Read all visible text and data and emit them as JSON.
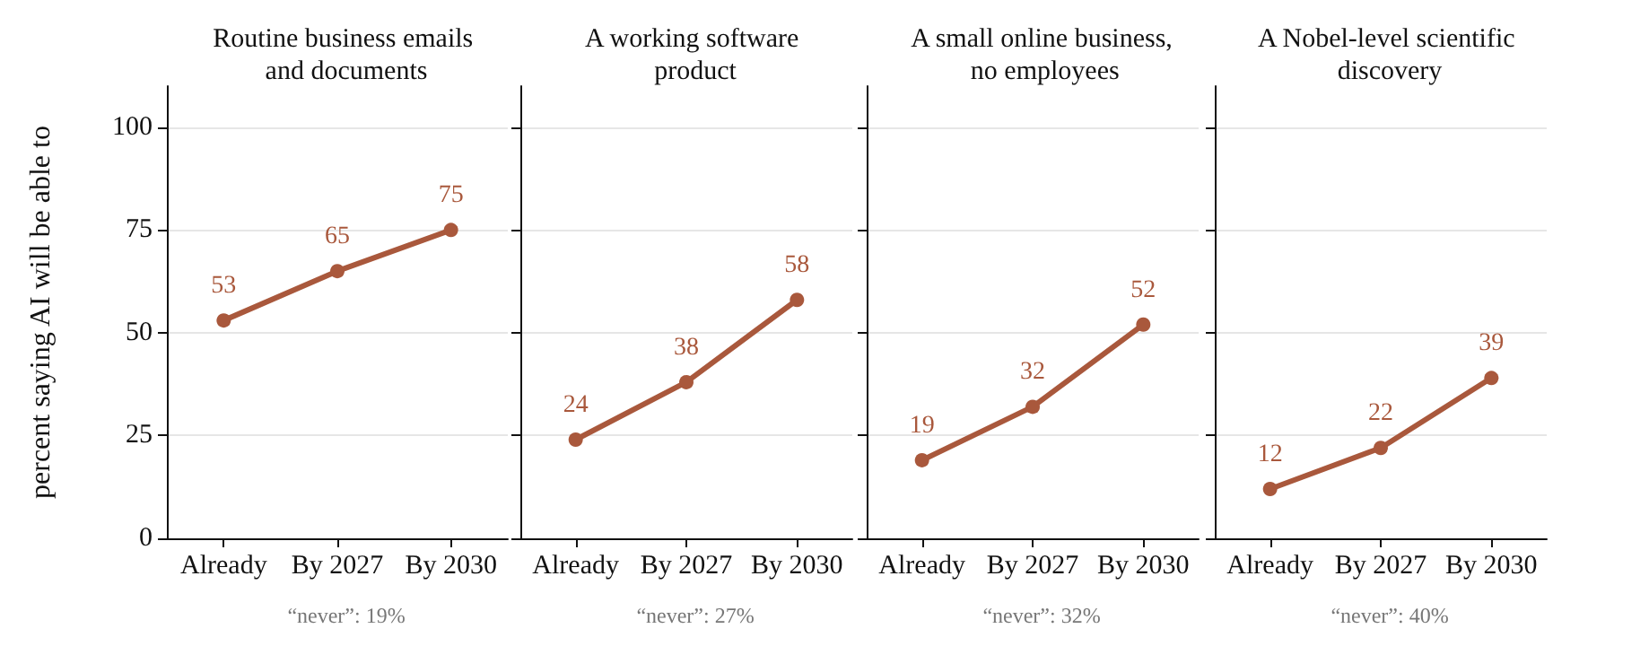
{
  "chart_data": [
    {
      "type": "line",
      "title": "Routine business emails and documents",
      "ylabel": "percent saying AI will be able to",
      "categories": [
        "Already",
        "By 2027",
        "By 2030"
      ],
      "series": [
        {
          "color": "#a9583c",
          "values": [
            53,
            65,
            75
          ]
        }
      ],
      "ylim": [
        0,
        110
      ],
      "yticks": [
        0,
        25,
        50,
        75,
        100
      ],
      "grid": "y",
      "marker": "circle",
      "data_labels": true,
      "annotations": [
        "“never”: 19%"
      ]
    },
    {
      "type": "line",
      "title": "A working software product",
      "categories": [
        "Already",
        "By 2027",
        "By 2030"
      ],
      "series": [
        {
          "color": "#a9583c",
          "values": [
            24,
            38,
            58
          ]
        }
      ],
      "ylim": [
        0,
        110
      ],
      "yticks": [
        0,
        25,
        50,
        75,
        100
      ],
      "grid": "y",
      "marker": "circle",
      "data_labels": true,
      "tick_labels": "x",
      "annotations": [
        "“never”: 27%"
      ]
    },
    {
      "type": "line",
      "title": "A small online business, no employees",
      "categories": [
        "Already",
        "By 2027",
        "By 2030"
      ],
      "series": [
        {
          "color": "#a9583c",
          "values": [
            19,
            32,
            52
          ]
        }
      ],
      "ylim": [
        0,
        110
      ],
      "yticks": [
        0,
        25,
        50,
        75,
        100
      ],
      "grid": "y",
      "marker": "circle",
      "data_labels": true,
      "tick_labels": "x",
      "annotations": [
        "“never”: 32%"
      ]
    },
    {
      "type": "line",
      "title": "A Nobel-level scientific discovery",
      "categories": [
        "Already",
        "By 2027",
        "By 2030"
      ],
      "series": [
        {
          "color": "#a9583c",
          "values": [
            12,
            22,
            39
          ]
        }
      ],
      "ylim": [
        0,
        110
      ],
      "yticks": [
        0,
        25,
        50,
        75,
        100
      ],
      "grid": "y",
      "marker": "circle",
      "data_labels": true,
      "tick_labels": "x",
      "annotations": [
        "“never”: 40%"
      ]
    }
  ]
}
